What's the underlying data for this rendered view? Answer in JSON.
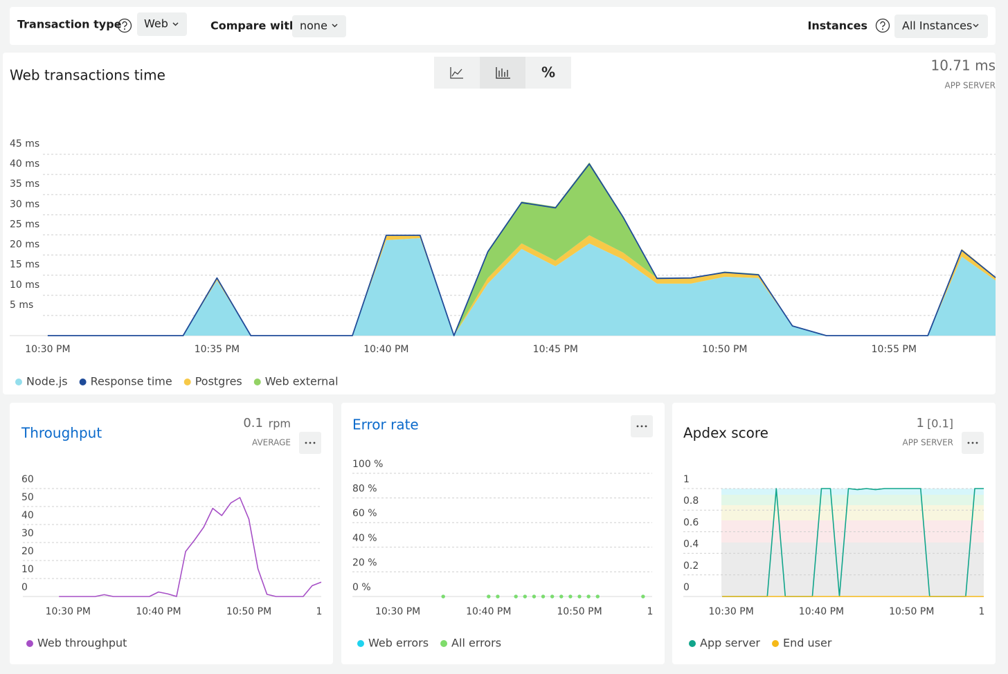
{
  "toolbar": {
    "transaction_type": {
      "label": "Transaction type",
      "value": "Web"
    },
    "compare_with": {
      "label": "Compare with",
      "value": "none"
    },
    "instances": {
      "label": "Instances",
      "value": "All Instances"
    }
  },
  "view_toggle": "%",
  "chart_data": [
    {
      "type": "area",
      "title": "Web transactions time",
      "summary": "10.71 ms",
      "summary_label": "APP SERVER",
      "x": [
        "10:30 PM",
        "10:31 PM",
        "10:32 PM",
        "10:33 PM",
        "10:34 PM",
        "10:35 PM",
        "10:36 PM",
        "10:37 PM",
        "10:38 PM",
        "10:39 PM",
        "10:40 PM",
        "10:41 PM",
        "10:42 PM",
        "10:43 PM",
        "10:44 PM",
        "10:45 PM",
        "10:46 PM",
        "10:47 PM",
        "10:48 PM",
        "10:49 PM",
        "10:50 PM",
        "10:51 PM",
        "10:52 PM",
        "10:53 PM",
        "10:54 PM",
        "10:55 PM",
        "10:56 PM",
        "10:57 PM",
        "10:58 PM"
      ],
      "xlim": [
        "10:29 PM",
        "10:58 PM"
      ],
      "xticks": [
        "10:30 PM",
        "10:35 PM",
        "10:40 PM",
        "10:45 PM",
        "10:50 PM",
        "10:55 PM"
      ],
      "ylim": [
        0,
        48
      ],
      "yticks": [
        {
          "value": 5,
          "label": "5 ms"
        },
        {
          "value": 10,
          "label": "10 ms"
        },
        {
          "value": 15,
          "label": "15 ms"
        },
        {
          "value": 20,
          "label": "20 ms"
        },
        {
          "value": 25,
          "label": "25 ms"
        },
        {
          "value": 30,
          "label": "30 ms"
        },
        {
          "value": 35,
          "label": "35 ms"
        },
        {
          "value": 40,
          "label": "40 ms"
        },
        {
          "value": 45,
          "label": "45 ms"
        }
      ],
      "grid": true,
      "series": [
        {
          "name": "Node.js",
          "color": "#94deec",
          "mark": "area",
          "values": [
            0,
            0,
            0,
            0,
            0,
            13.7,
            0,
            0,
            0,
            0,
            23.7,
            24.2,
            0,
            12.9,
            21.5,
            17.2,
            22.9,
            18.9,
            12.9,
            12.9,
            14.6,
            14.3,
            2.4,
            0,
            0,
            0,
            0,
            19.6,
            13.7
          ]
        },
        {
          "name": "Response time",
          "color": "#1f4b99",
          "mark": "line",
          "values": [
            0,
            0,
            0,
            0,
            0,
            14.3,
            0,
            0,
            0,
            0,
            24.9,
            24.9,
            0,
            20.8,
            33,
            31.7,
            42.6,
            29.4,
            14.2,
            14.3,
            15.7,
            15.1,
            2.4,
            0,
            0,
            0,
            0,
            21.2,
            14.4
          ]
        },
        {
          "name": "Postgres",
          "color": "#f7c948",
          "mark": "area",
          "values": [
            0,
            0,
            0,
            0,
            0,
            0.8,
            0,
            0,
            0,
            0,
            1.2,
            0.7,
            0,
            1.4,
            1.4,
            1.4,
            2,
            1.7,
            1.4,
            1.4,
            1,
            0.8,
            0,
            0,
            0,
            0,
            0,
            1.9,
            0.9
          ]
        },
        {
          "name": "Web external",
          "color": "#93d265",
          "mark": "area",
          "values": [
            0,
            0,
            0,
            0,
            0,
            0,
            0,
            0,
            0,
            0,
            0,
            0,
            0,
            6.8,
            10.4,
            13.4,
            18.1,
            9.1,
            0.1,
            0,
            0.3,
            0.2,
            0,
            0,
            0,
            0,
            0,
            0,
            0
          ]
        }
      ]
    },
    {
      "type": "line",
      "title": "Throughput",
      "summary": "0.1",
      "summary_unit": "rpm",
      "summary_label": "AVERAGE",
      "x": [
        "10:29 PM",
        "10:30 PM",
        "10:31 PM",
        "10:32 PM",
        "10:33 PM",
        "10:34 PM",
        "10:35 PM",
        "10:36 PM",
        "10:37 PM",
        "10:38 PM",
        "10:39 PM",
        "10:40 PM",
        "10:41 PM",
        "10:42 PM",
        "10:43 PM",
        "10:44 PM",
        "10:45 PM",
        "10:46 PM",
        "10:47 PM",
        "10:48 PM",
        "10:49 PM",
        "10:50 PM",
        "10:51 PM",
        "10:52 PM",
        "10:53 PM",
        "10:54 PM",
        "10:55 PM",
        "10:56 PM",
        "10:57 PM",
        "10:58 PM"
      ],
      "xlim": [
        "10:25 PM",
        "10:58 PM"
      ],
      "xticks": [
        "10:30 PM",
        "10:40 PM",
        "10:50 PM",
        {
          "value": "11:00 PM",
          "label": "1"
        }
      ],
      "ylim": [
        0,
        60
      ],
      "yticks": [
        0,
        10,
        20,
        30,
        40,
        50,
        60
      ],
      "grid": true,
      "series": [
        {
          "name": "Web throughput",
          "color": "#a64fc6",
          "values": [
            0,
            0,
            0,
            0,
            0,
            1,
            0,
            0,
            0,
            0,
            0,
            2.5,
            1.5,
            0,
            25,
            31.5,
            38.5,
            49,
            45,
            52,
            55,
            43,
            15.4,
            1.2,
            0,
            0,
            0,
            0,
            6,
            8
          ]
        }
      ]
    },
    {
      "type": "scatter",
      "title": "Error rate",
      "x": [
        "10:29 PM",
        "10:30 PM",
        "10:31 PM",
        "10:32 PM",
        "10:33 PM",
        "10:34 PM",
        "10:35 PM",
        "10:36 PM",
        "10:37 PM",
        "10:38 PM",
        "10:39 PM",
        "10:40 PM",
        "10:41 PM",
        "10:42 PM",
        "10:43 PM",
        "10:44 PM",
        "10:45 PM",
        "10:46 PM",
        "10:47 PM",
        "10:48 PM",
        "10:49 PM",
        "10:50 PM",
        "10:51 PM",
        "10:52 PM",
        "10:53 PM",
        "10:54 PM",
        "10:55 PM",
        "10:56 PM",
        "10:57 PM",
        "10:58 PM"
      ],
      "xlim": [
        "10:25 PM",
        "10:58 PM"
      ],
      "xticks": [
        "10:30 PM",
        "10:40 PM",
        "10:50 PM",
        {
          "value": "11:00 PM",
          "label": "1"
        }
      ],
      "ylim": [
        0,
        100
      ],
      "yticks": [
        {
          "value": 0,
          "label": "0 %"
        },
        {
          "value": 20,
          "label": "20 %"
        },
        {
          "value": 40,
          "label": "40 %"
        },
        {
          "value": 60,
          "label": "60 %"
        },
        {
          "value": 80,
          "label": "80 %"
        },
        {
          "value": 100,
          "label": "100 %"
        }
      ],
      "grid": true,
      "series": [
        {
          "name": "Web errors",
          "color": "#1fd3ef",
          "values": [
            null,
            null,
            null,
            null,
            null,
            null,
            0,
            null,
            null,
            null,
            null,
            0,
            0,
            null,
            0,
            0,
            0,
            0,
            0,
            0,
            0,
            0,
            0,
            0,
            null,
            null,
            null,
            null,
            0,
            null
          ]
        },
        {
          "name": "All errors",
          "color": "#7fdc6b",
          "values": [
            null,
            null,
            null,
            null,
            null,
            null,
            0,
            null,
            null,
            null,
            null,
            0,
            0,
            null,
            0,
            0,
            0,
            0,
            0,
            0,
            0,
            0,
            0,
            0,
            null,
            null,
            null,
            null,
            0,
            null
          ]
        }
      ]
    },
    {
      "type": "line",
      "title": "Apdex score",
      "summary": "1",
      "summary_extra": "[0.1]",
      "summary_label": "APP SERVER",
      "x": [
        "10:29 PM",
        "10:30 PM",
        "10:31 PM",
        "10:32 PM",
        "10:33 PM",
        "10:34 PM",
        "10:35 PM",
        "10:36 PM",
        "10:37 PM",
        "10:38 PM",
        "10:39 PM",
        "10:40 PM",
        "10:41 PM",
        "10:42 PM",
        "10:43 PM",
        "10:44 PM",
        "10:45 PM",
        "10:46 PM",
        "10:47 PM",
        "10:48 PM",
        "10:49 PM",
        "10:50 PM",
        "10:51 PM",
        "10:52 PM",
        "10:53 PM",
        "10:54 PM",
        "10:55 PM",
        "10:56 PM",
        "10:57 PM",
        "10:58 PM"
      ],
      "xlim": [
        "10:25 PM",
        "10:58 PM"
      ],
      "xticks": [
        "10:30 PM",
        "10:40 PM",
        "10:50 PM",
        {
          "value": "11:00 PM",
          "label": "1"
        }
      ],
      "ylim": [
        0,
        1
      ],
      "yticks": [
        0,
        0.2,
        0.4,
        0.6,
        0.8,
        1
      ],
      "grid": true,
      "series": [
        {
          "name": "App server",
          "color": "#11a58b",
          "values": [
            0,
            0,
            0,
            0,
            0,
            0,
            1,
            0,
            0,
            0,
            0,
            1,
            1,
            0,
            1,
            0.99,
            1,
            0.99,
            1,
            1,
            1,
            1,
            1,
            0,
            0,
            0,
            0,
            0,
            1,
            1
          ]
        },
        {
          "name": "End user",
          "color": "#f5b919",
          "values": [
            0,
            0,
            0,
            0,
            0,
            0,
            0,
            0,
            0,
            0,
            0,
            0,
            0,
            0,
            0,
            0,
            0,
            0,
            0,
            0,
            0,
            0,
            0,
            0,
            0,
            0,
            0,
            0,
            0,
            0
          ]
        }
      ]
    }
  ]
}
